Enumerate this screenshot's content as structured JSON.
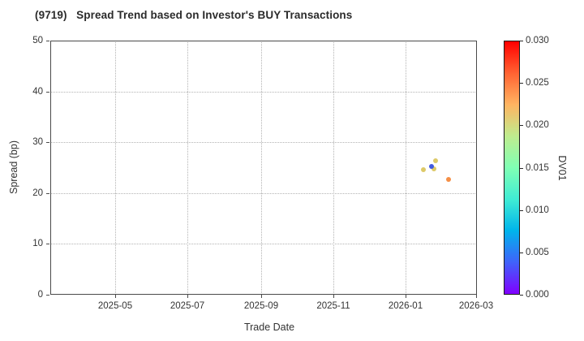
{
  "chart_data": {
    "type": "scatter",
    "title": "(9719)   Spread Trend based on Investor's BUY Transactions",
    "xlabel": "Trade Date",
    "ylabel": "Spread (bp)",
    "colorbar_label": "DV01",
    "x_tick_labels": [
      "2025-05",
      "2025-07",
      "2025-09",
      "2025-11",
      "2026-01",
      "2026-03"
    ],
    "x_tick_dates": [
      "2025-05-01",
      "2025-07-01",
      "2025-09-01",
      "2025-11-01",
      "2026-01-01",
      "2026-03-01"
    ],
    "xlim": [
      "2025-03-07",
      "2026-03-02"
    ],
    "y_ticks": [
      0,
      10,
      20,
      30,
      40,
      50
    ],
    "ylim": [
      0,
      50
    ],
    "grid": true,
    "grid_style": "dotted",
    "legend": "none",
    "colorbar": {
      "ticks": [
        "0.000",
        "0.005",
        "0.010",
        "0.015",
        "0.020",
        "0.025",
        "0.030"
      ],
      "range": [
        0.0,
        0.03
      ],
      "colormap": "rainbow",
      "gradient_stops_bottom_to_top": [
        "#8000ff",
        "#4062fa",
        "#00b4eb",
        "#40ecd4",
        "#80ffb4",
        "#bfec8e",
        "#ffb461",
        "#ff6232",
        "#ff0000"
      ]
    },
    "points": [
      {
        "date": "2026-01-16",
        "spread": 24.6,
        "dv01": 0.02,
        "color": "#ddc968"
      },
      {
        "date": "2026-01-25",
        "spread": 24.8,
        "dv01": 0.02,
        "color": "#ddc968"
      },
      {
        "date": "2026-01-26",
        "spread": 26.4,
        "dv01": 0.021,
        "color": "#ddc968"
      },
      {
        "date": "2026-01-23",
        "spread": 25.3,
        "dv01": 0.004,
        "color": "#4059e0"
      },
      {
        "date": "2026-02-06",
        "spread": 22.7,
        "dv01": 0.024,
        "color": "#f58f46"
      }
    ]
  },
  "colors": {
    "background": "#ffffff",
    "spine": "#4a4a4a",
    "grid": "#b3b3b3",
    "text": "#333333",
    "title_text": "#2b2b2b"
  }
}
